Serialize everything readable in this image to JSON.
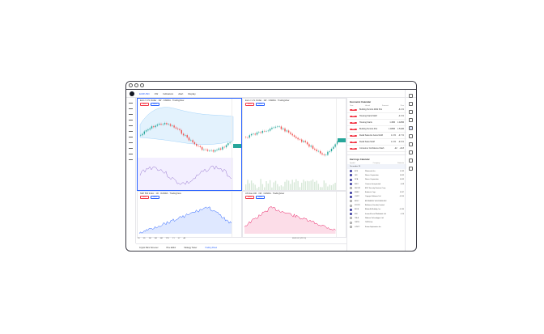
{
  "toolbar": {
    "symbol": "EURUSD",
    "interval": "1W",
    "indicators": "Indicators",
    "alert": "Alert",
    "replay": "Replay"
  },
  "panes": [
    {
      "title": "Euro / U.S. Dollar · 1W · OANDA · TradingView",
      "sell": "SELL",
      "buy": "BUY",
      "color": "#26a69a"
    },
    {
      "title": "Euro / U.S. Dollar · 1W · OANDA · TradingView",
      "sell": "SELL",
      "buy": "BUY",
      "color": "#f23645"
    },
    {
      "title": "S&P 500 Index · 1D · OANDA · TradingView",
      "sell": "SELL",
      "buy": "BUY",
      "color": "#2962ff"
    },
    {
      "title": "US Nas 100 · 1W · OANDA · TradingView",
      "sell": "SELL",
      "buy": "BUY",
      "color": "#e91e63"
    }
  ],
  "bottom": {
    "tabs": [
      "Crypto Pairs Screener",
      "Pine Editor",
      "Strategy Tester",
      "Trading Panel"
    ],
    "ranges": [
      "1D",
      "5D",
      "1M",
      "3M",
      "6M",
      "YTD",
      "1Y",
      "5Y",
      "All"
    ],
    "clock": "09:32:07 (UTC-5)",
    "log": "log",
    "auto": "auto"
  },
  "economic": {
    "title": "Economic Calendar",
    "cols": [
      "Time",
      "Actual",
      "Forecast",
      "Prior"
    ],
    "rows": [
      {
        "event": "Building Permits MoM Prel",
        "actual": "",
        "forecast": "",
        "prior": "-3.4 %"
      },
      {
        "event": "Housing Starts MoM",
        "actual": "",
        "forecast": "",
        "prior": "-4.3 %"
      },
      {
        "event": "Housing Starts",
        "actual": "",
        "forecast": "1.36M",
        "prior": "1.425M"
      },
      {
        "event": "Building Permits Prel",
        "actual": "",
        "forecast": "1.485M",
        "prior": "1.512M"
      },
      {
        "event": "Retail Sales Ex Autos MoM",
        "actual": "",
        "forecast": "1.0 %",
        "prior": "-0.7 %"
      },
      {
        "event": "Retail Sales MoM",
        "actual": "",
        "forecast": "1.0 %",
        "prior": "-0.6 %"
      },
      {
        "event": "Consumer Confidence Flash",
        "actual": "",
        "forecast": "-22",
        "prior": "-22.8"
      }
    ]
  },
  "earnings": {
    "title": "Earnings Calendar",
    "cols": [
      "Symbol",
      "Company",
      "Estimate"
    ],
    "date": "December 20",
    "rows": [
      {
        "sym": "BCE",
        "co": "Waterwork Inc.",
        "est": "0.163"
      },
      {
        "sym": "GIS",
        "co": "Nexus Corporation",
        "est": "0.663"
      },
      {
        "sym": "NCA",
        "co": "Nexus Corporation",
        "est": "0.663"
      },
      {
        "sym": "INFO",
        "co": "Cosmos Incorporated",
        "est": "-0.08"
      },
      {
        "sym": "SECUR",
        "co": "ESC Security Services Corp.",
        "est": ""
      },
      {
        "sym": "EMBC",
        "co": "Embecta Corp.",
        "est": "0.567"
      },
      {
        "sym": "CGNT",
        "co": "Cognyte Software Ltd.",
        "est": "-0.204"
      },
      {
        "sym": "BPGY",
        "co": "BP ENERGY HOLDINGS INC",
        "est": ""
      },
      {
        "sym": "STORY",
        "co": "Bellmare (Canada) Limited",
        "est": ""
      },
      {
        "sym": "BLDE",
        "co": "Blade Air Mobility, Inc.",
        "est": "-0.164"
      },
      {
        "sym": "IRN",
        "co": "IronoraPrecial Worldwide Ltd.",
        "est": "-0.16"
      },
      {
        "sym": "TBLA",
        "co": "Nubeon Technologies Ltd.",
        "est": ""
      },
      {
        "sym": "TWTB",
        "co": "TWTB Ltd.",
        "est": ""
      },
      {
        "sym": "LCNTY",
        "co": "Koinor Exploration Inc.",
        "est": ""
      }
    ]
  }
}
